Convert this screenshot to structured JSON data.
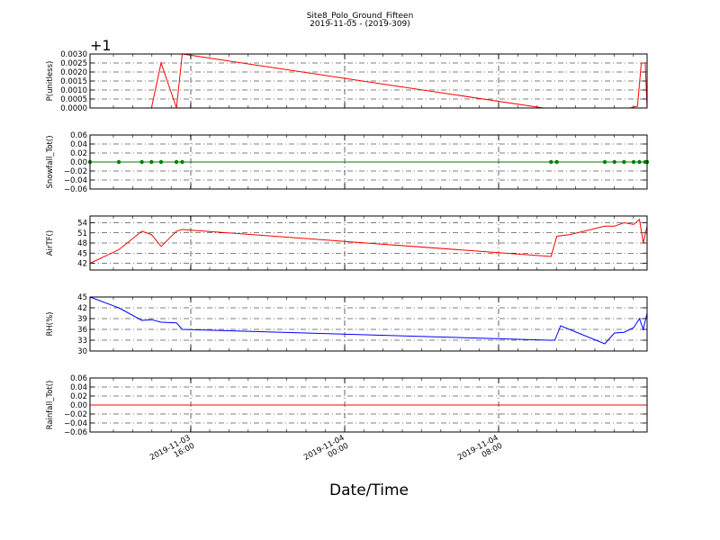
{
  "figure": {
    "title": "Site8_Polo_Ground_Fifteen",
    "subtitle": "2019-11-05 - (2019-309)",
    "xlabel": "Date/Time",
    "x_tick_labels": [
      {
        "line1": "2019-11-03",
        "line2": "16:00"
      },
      {
        "line1": "2019-11-04",
        "line2": "00:00"
      },
      {
        "line1": "2019-11-04",
        "line2": "08:00"
      }
    ]
  },
  "chart_data": [
    {
      "type": "line",
      "ylabel": "P(unitless)",
      "offset_label": "+1",
      "color": "#ff0000",
      "ylim": [
        0.0,
        0.003
      ],
      "yticks": [
        "0.0000",
        "0.0005",
        "0.0010",
        "0.0015",
        "0.0020",
        "0.0025",
        "0.0030"
      ],
      "grid": true,
      "x": [
        0,
        3.2,
        3.7,
        4.5,
        4.8,
        23.6,
        28.1,
        28.5,
        28.7,
        28.9,
        29.0
      ],
      "y": [
        0,
        0,
        0.0025,
        0,
        0.003,
        0,
        0,
        0.0001,
        0.0025,
        0.0025,
        0
      ]
    },
    {
      "type": "line",
      "ylabel": "Snowfall_Tot()",
      "color": "#008000",
      "markers": true,
      "ylim": [
        -0.06,
        0.06
      ],
      "yticks": [
        "0.06",
        "0.04",
        "0.02",
        "0.00",
        "−0.02",
        "−0.04",
        "−0.06"
      ],
      "grid": true,
      "x": [
        0,
        1.5,
        2.7,
        3.2,
        3.7,
        4.5,
        4.8,
        24.0,
        24.3,
        26.8,
        27.3,
        27.8,
        28.3,
        28.6,
        28.9,
        29.0
      ],
      "y": [
        0,
        0,
        0,
        0,
        0,
        0,
        0,
        0,
        0,
        0,
        0,
        0,
        0,
        0,
        0,
        0
      ]
    },
    {
      "type": "line",
      "ylabel": "AirTF()",
      "color": "#ff0000",
      "ylim": [
        40,
        56
      ],
      "yticks": [
        "54",
        "51",
        "48",
        "45",
        "42"
      ],
      "grid": true,
      "x": [
        0,
        1.5,
        2.7,
        3.2,
        3.7,
        4.5,
        4.8,
        24.0,
        24.3,
        25.0,
        26.8,
        27.3,
        27.8,
        28.3,
        28.6,
        28.8,
        29.0
      ],
      "y": [
        42.0,
        46.0,
        51.5,
        50.5,
        47.0,
        51.5,
        52.0,
        44.0,
        50.0,
        50.5,
        53.0,
        53.0,
        54.0,
        53.5,
        55.0,
        48.0,
        53.0
      ]
    },
    {
      "type": "line",
      "ylabel": "RH(%)",
      "color": "#0000ff",
      "ylim": [
        30,
        45
      ],
      "yticks": [
        "45",
        "42",
        "39",
        "36",
        "33",
        "30"
      ],
      "grid": true,
      "x": [
        0,
        1.5,
        2.7,
        3.2,
        3.7,
        4.5,
        4.8,
        23.9,
        24.2,
        24.5,
        26.8,
        27.3,
        27.8,
        28.3,
        28.6,
        28.8,
        29.0
      ],
      "y": [
        45.0,
        42.0,
        38.5,
        38.7,
        38.0,
        37.8,
        36.0,
        33.0,
        33.0,
        37.0,
        32.0,
        35.0,
        35.2,
        36.5,
        39.0,
        36.0,
        40.5
      ]
    },
    {
      "type": "line",
      "ylabel": "Rainfall_Tot()",
      "color": "#ff0000",
      "ylim": [
        -0.06,
        0.06
      ],
      "yticks": [
        "0.06",
        "0.04",
        "0.02",
        "0.00",
        "−0.02",
        "−0.04",
        "−0.06"
      ],
      "grid": true,
      "x": [
        0,
        29.0
      ],
      "y": [
        0,
        0
      ]
    }
  ]
}
